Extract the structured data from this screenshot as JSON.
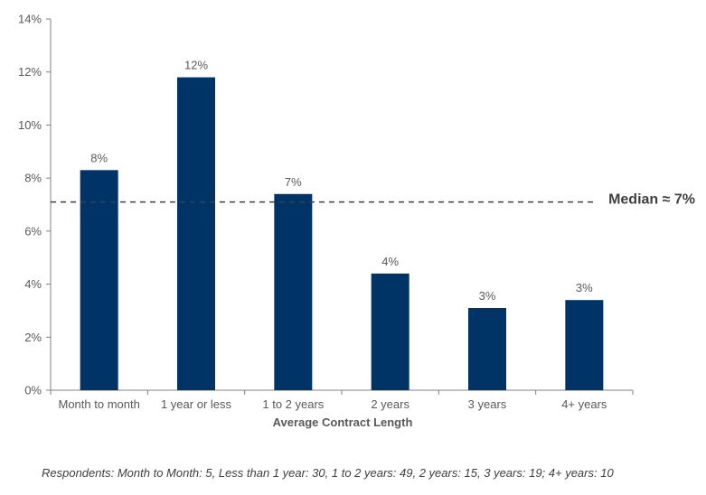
{
  "chart_data": {
    "type": "bar",
    "title": "",
    "xlabel": "Average Contract Length",
    "ylabel": "",
    "categories": [
      "Month to month",
      "1 year or less",
      "1 to 2 years",
      "2 years",
      "3 years",
      "4+ years"
    ],
    "values": [
      8.3,
      11.8,
      7.4,
      4.4,
      3.1,
      3.4
    ],
    "data_labels": [
      "8%",
      "12%",
      "7%",
      "4%",
      "3%",
      "3%"
    ],
    "ylim": [
      0,
      14
    ],
    "yticks": [
      0,
      2,
      4,
      6,
      8,
      10,
      12,
      14
    ],
    "ytick_labels": [
      "0%",
      "2%",
      "4%",
      "6%",
      "8%",
      "10%",
      "12%",
      "14%"
    ],
    "grid": false,
    "legend": "none",
    "bar_color": "#003366",
    "reference_line": {
      "value": 7.1,
      "label": "Median ≈ 7%",
      "style": "dashed",
      "color": "#404040"
    }
  },
  "footnote": "Respondents: Month to Month: 5, Less than 1 year: 30, 1 to 2 years: 49, 2 years: 15, 3 years: 19; 4+ years: 10"
}
